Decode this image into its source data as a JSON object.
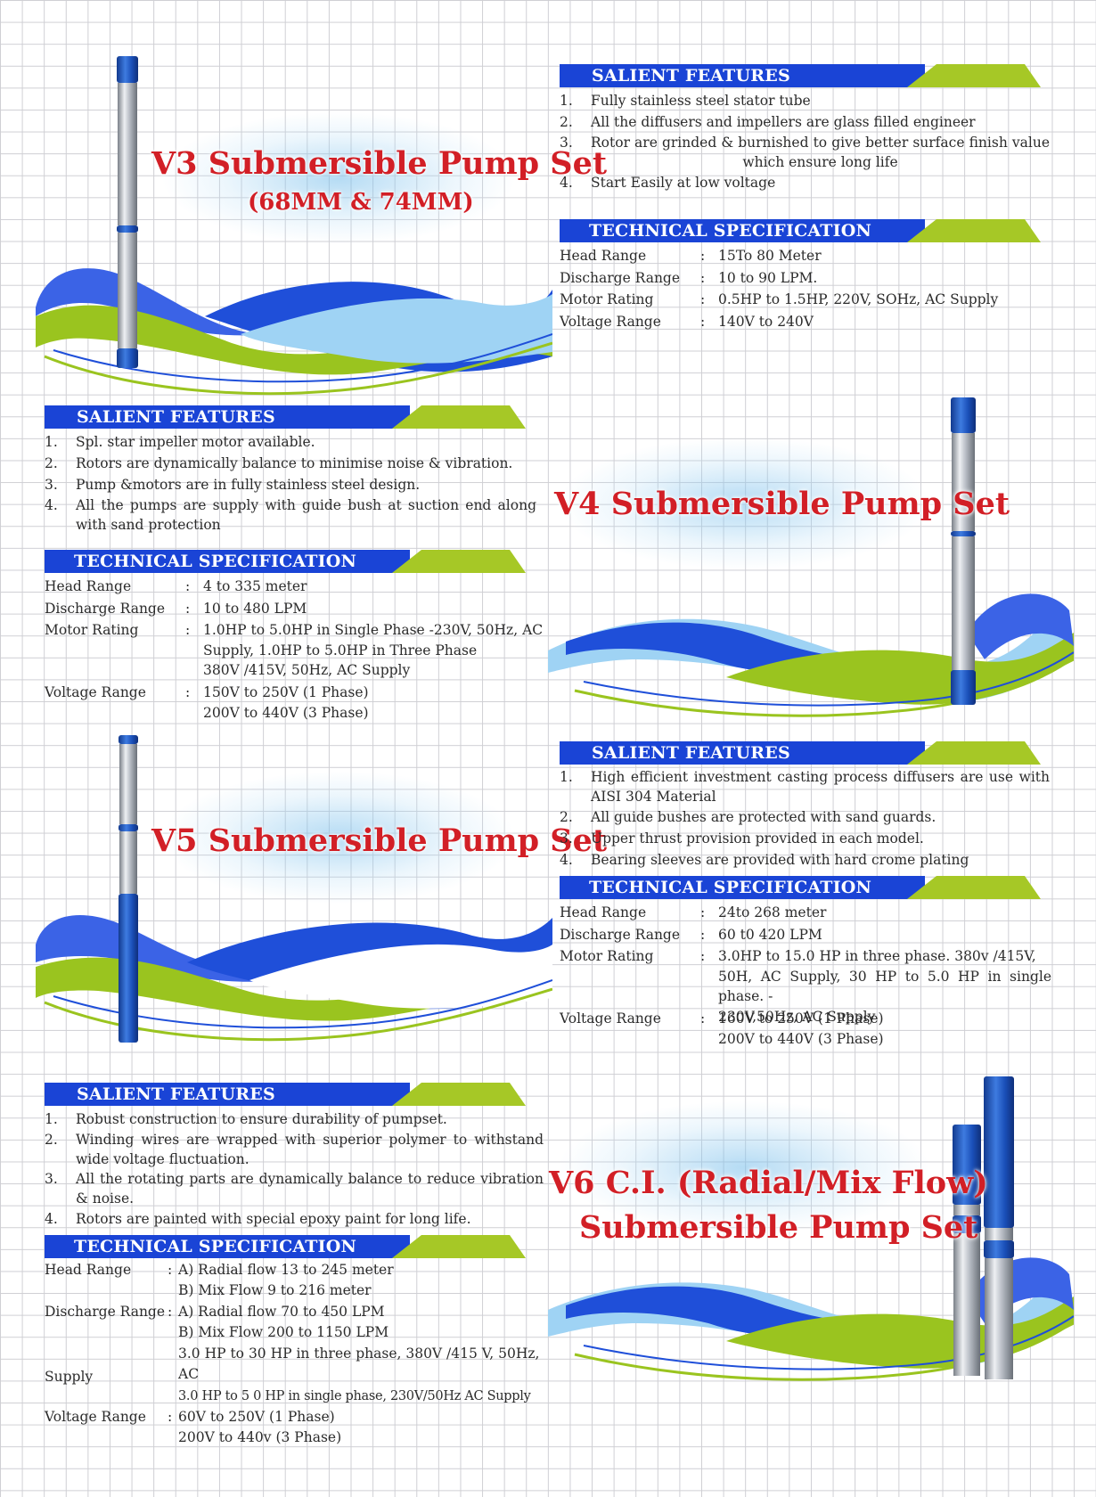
{
  "colors": {
    "title_red": "#d21f26",
    "header_blue": "#1a44d6",
    "header_green": "#a6c826",
    "wave_light_blue": "#9fd3f4",
    "wave_blue": "#1f4fd9",
    "wave_green": "#9ac41f"
  },
  "v3": {
    "title": "V3 Submersible Pump Set",
    "subtitle": "(68MM & 74MM)",
    "salient_header": "SALIENT FEATURES",
    "features": [
      {
        "n": "1.",
        "text": "Fully stainless steel stator tube"
      },
      {
        "n": "2.",
        "text": "All the diffusers and impellers are glass filled engineer"
      },
      {
        "n": "3.",
        "text": "Rotor are grinded & burnished to give better surface finish value which ensure long life"
      },
      {
        "n": "4.",
        "text": "Start Easily at low voltage"
      }
    ],
    "tech_header": "TECHNICAL SPECIFICATION",
    "specs": [
      {
        "k": "Head Range",
        "c": ":",
        "v": [
          "15To 80 Meter"
        ]
      },
      {
        "k": "Discharge Range",
        "c": ":",
        "v": [
          "10 to 90 LPM."
        ]
      },
      {
        "k": "Motor Rating",
        "c": ":",
        "v": [
          "0.5HP to 1.5HP, 220V, SOHz, AC Supply"
        ]
      },
      {
        "k": "Voltage Range",
        "c": ":",
        "v": [
          "140V to 240V"
        ]
      }
    ]
  },
  "v4": {
    "title": "V4 Submersible Pump Set",
    "salient_header": "SALIENT FEATURES",
    "features": [
      {
        "n": "1.",
        "text": "Spl. star impeller motor available."
      },
      {
        "n": "2.",
        "text": "Rotors are dynamically balance to minimise noise & vibration."
      },
      {
        "n": "3.",
        "text": "Pump &motors are in fully stainless steel design."
      },
      {
        "n": "4.",
        "text": "All the pumps are supply with guide bush at suction end along with sand protection"
      }
    ],
    "tech_header": "TECHNICAL SPECIFICATION",
    "specs": [
      {
        "k": "Head Range",
        "c": ":",
        "v": [
          "4 to 335 meter"
        ]
      },
      {
        "k": "Discharge Range",
        "c": ":",
        "v": [
          "10 to 480 LPM"
        ]
      },
      {
        "k": "Motor Rating",
        "c": ":",
        "v": [
          "1.0HP to 5.0HP in Single Phase -230V, 50Hz, AC",
          "Supply, 1.0HP to 5.0HP in Three Phase",
          "380V /415V, 50Hz, AC Supply"
        ]
      },
      {
        "k": "Voltage Range",
        "c": ":",
        "v": [
          "150V to 250V (1 Phase)",
          "200V to 440V (3 Phase)"
        ]
      }
    ]
  },
  "v5": {
    "title": "V5 Submersible Pump Set",
    "salient_header": "SALIENT FEATURES",
    "features": [
      {
        "n": "1.",
        "text": "High efficient investment casting process diffusers are use with AISI 304 Material"
      },
      {
        "n": "2.",
        "text": "All guide bushes are protected with sand guards."
      },
      {
        "n": "3.",
        "text": "Upper thrust provision provided in each model."
      },
      {
        "n": "4.",
        "text": "Bearing  sleeves are provided with hard crome plating"
      }
    ],
    "tech_header": "TECHNICAL SPECIFICATION",
    "specs": [
      {
        "k": "Head Range",
        "c": ":",
        "v": [
          "24to 268 meter"
        ]
      },
      {
        "k": "Discharge Range",
        "c": ":",
        "v": [
          "60 t0 420 LPM"
        ]
      },
      {
        "k": "Motor Rating",
        "c": ":",
        "v": [
          "3.0HP to 15.0 HP in three phase. 380v /415V,",
          "50H, AC Supply, 30 HP to 5.0 HP in single phase. -",
          "230V,50Hz, AC Supply"
        ]
      },
      {
        "k": "Voltage Range",
        "c": ":",
        "v": [
          "160V to 250V (1 Phase)",
          "200V to 440V (3 Phase)"
        ]
      }
    ]
  },
  "v6": {
    "title_line1": "V6 C.I. (Radial/Mix Flow)",
    "title_line2": "Submersible Pump Set",
    "salient_header": "SALIENT FEATURES",
    "features": [
      {
        "n": "1.",
        "text": "Robust construction to ensure durability of pumpset."
      },
      {
        "n": "2.",
        "text": "Winding wires are wrapped with superior polymer to withstand wide voltage fluctuation."
      },
      {
        "n": "3.",
        "text": "All the rotating parts are dynamically balance to reduce vibration & noise."
      },
      {
        "n": "4.",
        "text": "Rotors are painted with special epoxy paint for long life."
      }
    ],
    "tech_header": "TECHNICAL SPECIFICATION",
    "specs": {
      "head_label": "Head Range",
      "head_colon": ":",
      "head_a": "A) Radial flow 13 to 245 meter",
      "head_b": "B) Mix Flow 9 to 216 meter",
      "discharge_label": "Discharge Range",
      "discharge_colon": ":",
      "discharge_a": "A) Radial flow 70 to 450 LPM",
      "discharge_b": "B) Mix Flow 200 to 1150 LPM",
      "motor_line1": "3.0 HP to 30 HP in three phase, 380V /415 V, 50Hz, AC",
      "motor_supply": "Supply",
      "motor_line2": "3.0 HP to 5 0 HP in single phase, 230V/50Hz AC Supply",
      "voltage_label": "Voltage Range",
      "voltage_colon": ":",
      "voltage_a": "60V to 250V (1 Phase)",
      "voltage_b": "200V to 440v (3 Phase)"
    }
  }
}
